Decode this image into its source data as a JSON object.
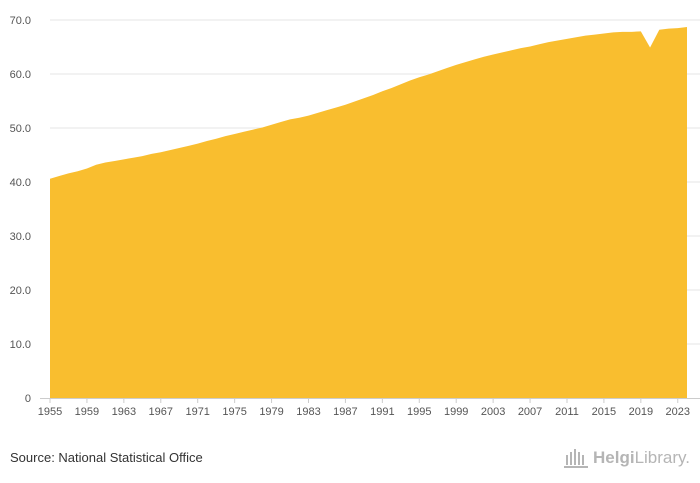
{
  "chart_data": {
    "type": "area",
    "title": "",
    "xlabel": "",
    "ylabel": "",
    "color": "#F9BE2F",
    "grid": true,
    "legend": "none",
    "ylim": [
      0,
      70
    ],
    "xlim": [
      1955,
      2024
    ],
    "y_ticks": [
      "0",
      "10.0",
      "20.0",
      "30.0",
      "40.0",
      "50.0",
      "60.0",
      "70.0"
    ],
    "y_tick_values": [
      0,
      10,
      20,
      30,
      40,
      50,
      60,
      70
    ],
    "x_ticks": [
      "1955",
      "1959",
      "1963",
      "1967",
      "1971",
      "1975",
      "1979",
      "1983",
      "1987",
      "1991",
      "1995",
      "1999",
      "2003",
      "2007",
      "2011",
      "2015",
      "2019",
      "2023"
    ],
    "x_tick_values": [
      1955,
      1959,
      1963,
      1967,
      1971,
      1975,
      1979,
      1983,
      1987,
      1991,
      1995,
      1999,
      2003,
      2007,
      2011,
      2015,
      2019,
      2023
    ],
    "x": [
      1955,
      1956,
      1957,
      1958,
      1959,
      1960,
      1961,
      1962,
      1963,
      1964,
      1965,
      1966,
      1967,
      1968,
      1969,
      1970,
      1971,
      1972,
      1973,
      1974,
      1975,
      1976,
      1977,
      1978,
      1979,
      1980,
      1981,
      1982,
      1983,
      1984,
      1985,
      1986,
      1987,
      1988,
      1989,
      1990,
      1991,
      1992,
      1993,
      1994,
      1995,
      1996,
      1997,
      1998,
      1999,
      2000,
      2001,
      2002,
      2003,
      2004,
      2005,
      2006,
      2007,
      2008,
      2009,
      2010,
      2011,
      2012,
      2013,
      2014,
      2015,
      2016,
      2017,
      2018,
      2019,
      2020,
      2021,
      2022,
      2023,
      2024
    ],
    "values": [
      40.6,
      41.1,
      41.6,
      42.0,
      42.5,
      43.2,
      43.6,
      43.9,
      44.2,
      44.5,
      44.8,
      45.2,
      45.5,
      45.9,
      46.3,
      46.7,
      47.1,
      47.6,
      48.0,
      48.5,
      48.9,
      49.3,
      49.7,
      50.1,
      50.6,
      51.1,
      51.6,
      51.9,
      52.3,
      52.8,
      53.3,
      53.8,
      54.3,
      54.9,
      55.5,
      56.1,
      56.8,
      57.4,
      58.1,
      58.8,
      59.4,
      59.9,
      60.5,
      61.1,
      61.7,
      62.2,
      62.7,
      63.2,
      63.6,
      64.0,
      64.4,
      64.8,
      65.1,
      65.5,
      65.9,
      66.2,
      66.5,
      66.8,
      67.1,
      67.3,
      67.5,
      67.7,
      67.8,
      67.8,
      67.9,
      64.9,
      68.2,
      68.4,
      68.5,
      68.7
    ]
  },
  "footer": {
    "source": "Source: National Statistical Office",
    "logo_text_bold": "Helgi",
    "logo_text": "Library."
  }
}
